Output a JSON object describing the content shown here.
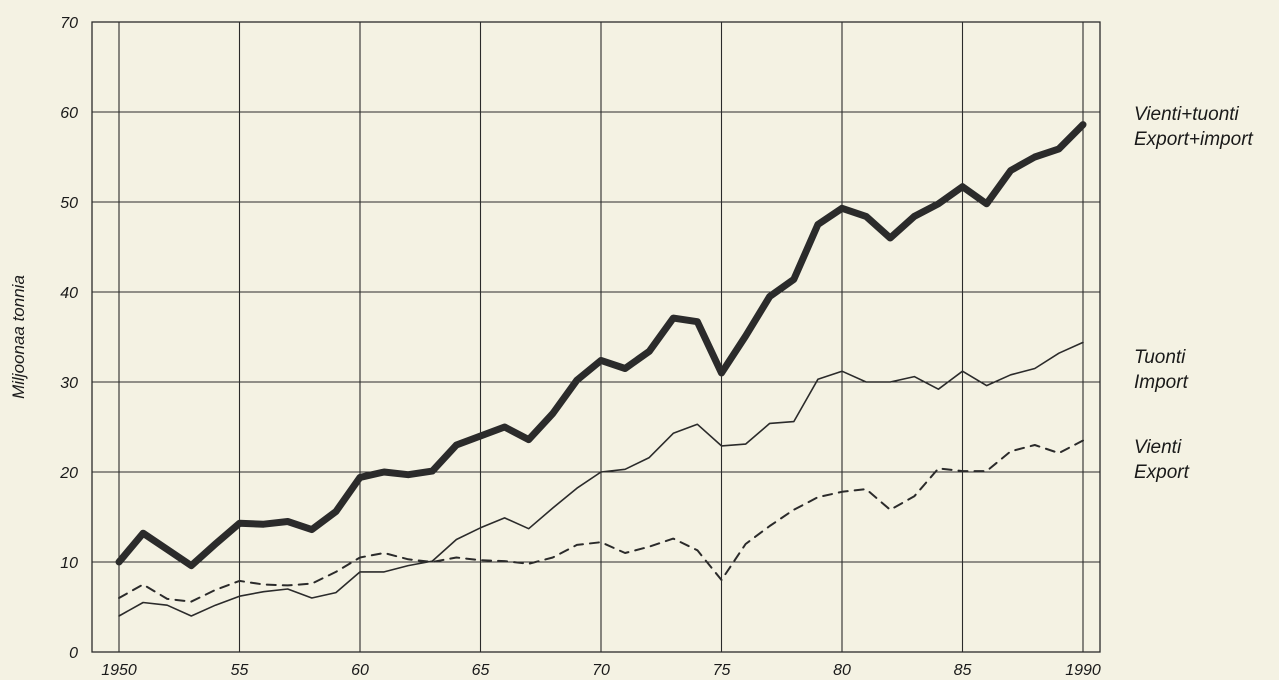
{
  "chart_data": {
    "type": "line",
    "title": "",
    "xlabel": "",
    "ylabel": "Miljoonaa tonnia",
    "ylim": [
      0,
      70
    ],
    "xlim": [
      1950,
      1990
    ],
    "grid": true,
    "x_ticks": [
      1950,
      1955,
      1960,
      1965,
      1970,
      1975,
      1980,
      1985,
      1990
    ],
    "x_tick_labels": [
      "1950",
      "55",
      "60",
      "65",
      "70",
      "75",
      "80",
      "85",
      "1990"
    ],
    "y_ticks": [
      0,
      10,
      20,
      30,
      40,
      50,
      60,
      70
    ],
    "y_tick_labels": [
      "0",
      "10",
      "20",
      "30",
      "40",
      "50",
      "60",
      "70"
    ],
    "x": [
      1950,
      1951,
      1952,
      1953,
      1954,
      1955,
      1956,
      1957,
      1958,
      1959,
      1960,
      1961,
      1962,
      1963,
      1964,
      1965,
      1966,
      1967,
      1968,
      1969,
      1970,
      1971,
      1972,
      1973,
      1974,
      1975,
      1976,
      1977,
      1978,
      1979,
      1980,
      1981,
      1982,
      1983,
      1984,
      1985,
      1986,
      1987,
      1988,
      1989,
      1990
    ],
    "series": [
      {
        "name": "Vienti+tuonti / Export+import",
        "label_lines": [
          "Vienti+tuonti",
          "Export+import"
        ],
        "style": "thick",
        "color": "#2b2b2b",
        "values": [
          10.0,
          13.2,
          11.4,
          9.6,
          12.0,
          14.3,
          14.2,
          14.5,
          13.6,
          15.6,
          19.4,
          20.0,
          19.7,
          20.1,
          23.0,
          24.0,
          25.0,
          23.6,
          26.5,
          30.2,
          32.4,
          31.5,
          33.4,
          37.1,
          36.7,
          31.0,
          35.1,
          39.5,
          41.4,
          47.5,
          49.3,
          48.4,
          46.0,
          48.4,
          49.8,
          51.7,
          49.8,
          53.5,
          55.0,
          55.9,
          58.6
        ]
      },
      {
        "name": "Tuonti / Import",
        "label_lines": [
          "Tuonti",
          "Import"
        ],
        "style": "thin",
        "color": "#2b2b2b",
        "values": [
          4.0,
          5.5,
          5.2,
          4.0,
          5.2,
          6.2,
          6.7,
          7.0,
          6.0,
          6.6,
          8.9,
          8.9,
          9.6,
          10.1,
          12.5,
          13.8,
          14.9,
          13.7,
          16.0,
          18.2,
          20.0,
          20.3,
          21.6,
          24.3,
          25.3,
          22.9,
          23.1,
          25.4,
          25.6,
          30.3,
          31.2,
          30.0,
          30.0,
          30.6,
          29.2,
          31.2,
          29.6,
          30.8,
          31.5,
          33.2,
          34.4
        ]
      },
      {
        "name": "Vienti / Export",
        "label_lines": [
          "Vienti",
          "Export"
        ],
        "style": "dashed",
        "color": "#2b2b2b",
        "values": [
          6.0,
          7.5,
          5.9,
          5.6,
          6.9,
          7.9,
          7.5,
          7.4,
          7.6,
          8.9,
          10.5,
          11.0,
          10.3,
          10.0,
          10.5,
          10.2,
          10.1,
          9.8,
          10.5,
          11.9,
          12.2,
          11.0,
          11.7,
          12.6,
          11.3,
          8.0,
          12.0,
          14.0,
          15.8,
          17.2,
          17.8,
          18.1,
          15.8,
          17.3,
          20.4,
          20.1,
          20.1,
          22.3,
          23.0,
          22.1,
          23.5
        ]
      }
    ]
  }
}
